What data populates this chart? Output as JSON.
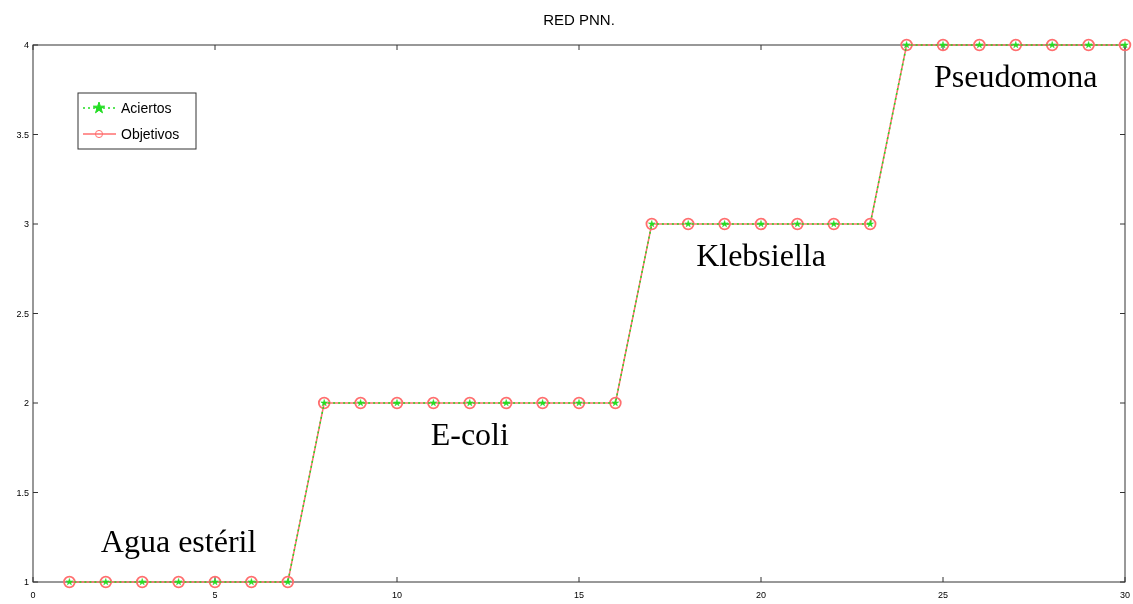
{
  "chart_data": {
    "type": "line",
    "title": "RED PNN.",
    "x": [
      1,
      2,
      3,
      4,
      5,
      6,
      7,
      8,
      9,
      10,
      11,
      12,
      13,
      14,
      15,
      16,
      17,
      18,
      19,
      20,
      21,
      22,
      23,
      24,
      25,
      26,
      27,
      28,
      29,
      30
    ],
    "series": [
      {
        "name": "Aciertos",
        "color": "#22dd22",
        "marker": "star",
        "line_style": "dotted",
        "values": [
          1,
          1,
          1,
          1,
          1,
          1,
          1,
          2,
          2,
          2,
          2,
          2,
          2,
          2,
          2,
          2,
          3,
          3,
          3,
          3,
          3,
          3,
          3,
          4,
          4,
          4,
          4,
          4,
          4,
          4
        ]
      },
      {
        "name": "Objetivos",
        "color": "#ff6f6f",
        "marker": "circle",
        "line_style": "solid",
        "values": [
          1,
          1,
          1,
          1,
          1,
          1,
          1,
          2,
          2,
          2,
          2,
          2,
          2,
          2,
          2,
          2,
          3,
          3,
          3,
          3,
          3,
          3,
          3,
          4,
          4,
          4,
          4,
          4,
          4,
          4
        ]
      }
    ],
    "xlim": [
      0,
      30
    ],
    "xticks": [
      0,
      5,
      10,
      15,
      20,
      25,
      30
    ],
    "ylim": [
      1,
      4
    ],
    "yticks": [
      1,
      1.5,
      2,
      2.5,
      3,
      3.5,
      4
    ],
    "grid": false,
    "legend": "top left",
    "annotations": [
      {
        "text": "Agua estéril",
        "x": 4,
        "y": 1
      },
      {
        "text": "E-coli",
        "x": 12,
        "y": 2
      },
      {
        "text": "Klebsiella",
        "x": 20,
        "y": 3
      },
      {
        "text": "Pseudomona",
        "x": 27,
        "y": 4
      }
    ]
  }
}
